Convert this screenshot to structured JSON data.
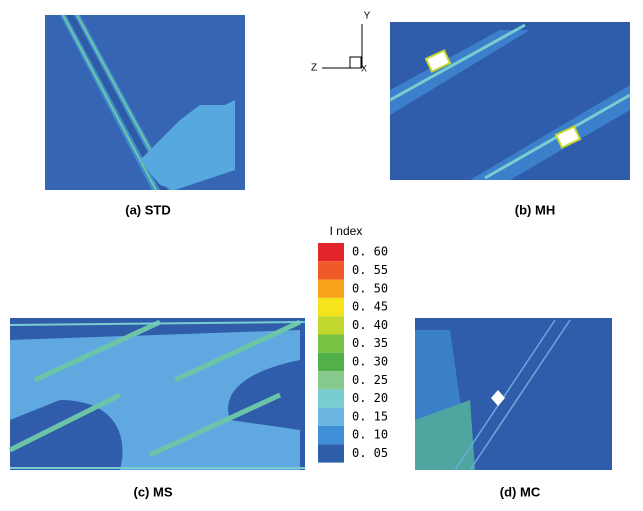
{
  "panels": [
    {
      "caption": "(a) STD"
    },
    {
      "caption": "(b) MH"
    },
    {
      "caption": "(c) MS"
    },
    {
      "caption": "(d) MC"
    }
  ],
  "axes_triad": {
    "y": "Y",
    "z": "Z",
    "x": "X"
  },
  "legend": {
    "title": "I ndex",
    "entries": [
      {
        "label": "0. 60",
        "color": "#e3242b"
      },
      {
        "label": "0. 55",
        "color": "#ef5a28"
      },
      {
        "label": "0. 50",
        "color": "#f7a21b"
      },
      {
        "label": "0. 45",
        "color": "#f5e31c"
      },
      {
        "label": "0. 40",
        "color": "#c2d82e"
      },
      {
        "label": "0. 35",
        "color": "#79c143"
      },
      {
        "label": "0. 30",
        "color": "#52b04b"
      },
      {
        "label": "0. 25",
        "color": "#86c98d"
      },
      {
        "label": "0. 20",
        "color": "#78cdd0"
      },
      {
        "label": "0. 15",
        "color": "#6bb7e2"
      },
      {
        "label": "0. 10",
        "color": "#3f8fd8"
      },
      {
        "label": "0. 05",
        "color": "#2e5daa"
      }
    ]
  }
}
